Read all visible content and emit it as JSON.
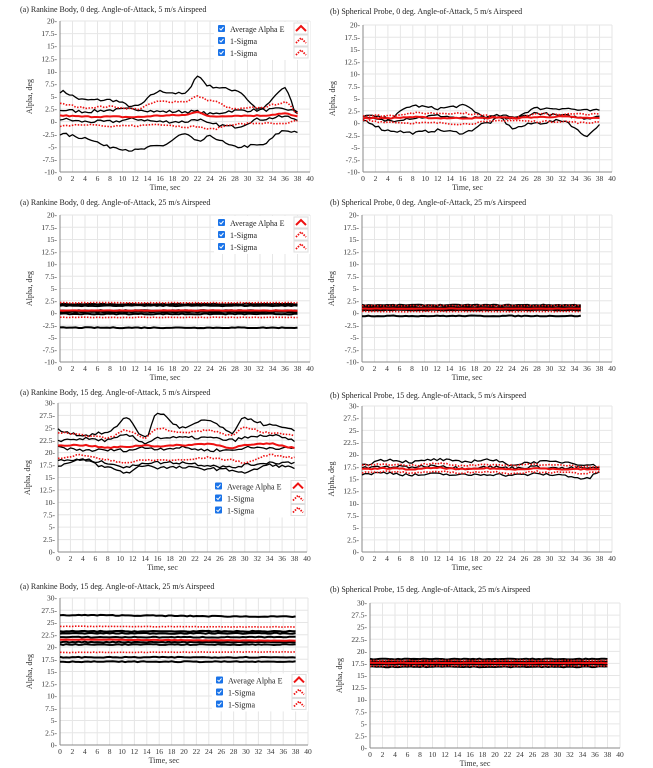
{
  "colors": {
    "run": "#000000",
    "mean": "#ee1111",
    "sigma": "#ee1111",
    "grid": "#e6e6e6",
    "checkbox": "#1a73e8"
  },
  "legend": [
    "Average Alpha E",
    "1-Sigma",
    "1-Sigma"
  ],
  "chart_data": [
    {
      "type": "line",
      "title": "(a) Rankine Body, 0 deg. Angle-of-Attack, 5 m/s Airspeed",
      "xlabel": "Time, sec",
      "ylabel": "Alpha, deg",
      "xlim": [
        0,
        40
      ],
      "xstep": 2,
      "ylim": [
        -10,
        20
      ],
      "ystep": 2.5,
      "grid": true,
      "legend": "top-right",
      "t": [
        0,
        4,
        8,
        12,
        16,
        20,
        22,
        24,
        28,
        32,
        36,
        38
      ],
      "mean": [
        1.2,
        1.0,
        1.0,
        0.9,
        1.2,
        1.3,
        2.0,
        1.0,
        1.2,
        1.2,
        1.6,
        1.0
      ],
      "sigma_upper": [
        3.5,
        2.8,
        3.0,
        2.5,
        4.0,
        4.0,
        5.0,
        4.2,
        2.5,
        2.8,
        3.8,
        1.8
      ],
      "sigma_lower": [
        -0.8,
        -0.5,
        -1.0,
        -0.8,
        -0.5,
        -1.0,
        -1.0,
        -1.5,
        -0.5,
        -0.3,
        -0.5,
        0.2
      ],
      "runs": [
        [
          6,
          4.3,
          4.3,
          3,
          6,
          5.5,
          9,
          7,
          6.3,
          2.5,
          6.5,
          1.5
        ],
        [
          2.3,
          2,
          2.3,
          2.5,
          2,
          2,
          2,
          1.5,
          2.2,
          2.3,
          2.5,
          2
        ],
        [
          0.5,
          0,
          0,
          0.5,
          0,
          0,
          0.5,
          -0.5,
          -1,
          0.5,
          1,
          0.5
        ],
        [
          -2.5,
          -3.2,
          -5,
          -5.7,
          -4.8,
          -2.5,
          -4,
          -3,
          -5,
          -4.7,
          -1.8,
          -2
        ]
      ]
    },
    {
      "type": "line",
      "title": "(b) Spherical Probe, 0 deg. Angle-of-Attack, 5 m/s Airspeed",
      "xlabel": "Time, sec",
      "ylabel": "Alpha, deg",
      "xlim": [
        0,
        40
      ],
      "xstep": 2,
      "ylim": [
        -10,
        20
      ],
      "ystep": 2.5,
      "grid": true,
      "legend": "none",
      "t": [
        0,
        4,
        8,
        12,
        16,
        20,
        22,
        24,
        28,
        32,
        36,
        38
      ],
      "mean": [
        1,
        1,
        1.2,
        1,
        1,
        1,
        1.2,
        1,
        1.2,
        1.3,
        1,
        1
      ],
      "sigma_upper": [
        1.5,
        1.5,
        2,
        2,
        2,
        1.5,
        1.3,
        1,
        1.8,
        1.8,
        1.8,
        1.8
      ],
      "sigma_lower": [
        0.5,
        0.2,
        0,
        0,
        -0.2,
        0.2,
        0.5,
        0.5,
        0.3,
        0.3,
        0,
        0.3
      ],
      "runs": [
        [
          1.5,
          1,
          3.5,
          3,
          3.5,
          1.2,
          1.5,
          1.2,
          3,
          3,
          2.5,
          2.5
        ],
        [
          0.5,
          -1.5,
          -2,
          -1.5,
          -2,
          0,
          1,
          -1,
          0,
          0.5,
          -2.5,
          -0.5
        ],
        [
          1,
          0.5,
          1,
          1.5,
          1,
          1,
          1,
          1,
          2,
          1.5,
          1,
          1.5
        ]
      ]
    },
    {
      "type": "line",
      "title": "(a) Rankine Body, 0 deg. Angle-of-Attack, 25 m/s Airspeed",
      "xlabel": "Time, sec",
      "ylabel": "Alpha, deg",
      "xlim": [
        0,
        40
      ],
      "xstep": 2,
      "ylim": [
        -10,
        20
      ],
      "ystep": 2.5,
      "grid": true,
      "legend": "top-right",
      "t": [
        0,
        38
      ],
      "mean": [
        0.5,
        0.5
      ],
      "sigma_upper": [
        2.1,
        2.1
      ],
      "sigma_lower": [
        -0.9,
        -0.9
      ],
      "runs": [
        [
          1.8,
          1.8
        ],
        [
          1.5,
          1.5
        ],
        [
          0.5,
          0.5
        ],
        [
          0.2,
          0.2
        ],
        [
          -0.2,
          -0.2
        ],
        [
          -3,
          -3
        ]
      ]
    },
    {
      "type": "line",
      "title": "(b) Spherical Probe, 0 deg. Angle-of-Attack, 25 m/s Airspeed",
      "xlabel": "Time, sec",
      "ylabel": "Alpha, deg",
      "xlim": [
        0,
        40
      ],
      "xstep": 2,
      "ylim": [
        -10,
        20
      ],
      "ystep": 2.5,
      "grid": true,
      "legend": "none",
      "t": [
        0,
        35
      ],
      "mean": [
        0.9,
        0.9
      ],
      "sigma_upper": [
        1.5,
        1.5
      ],
      "sigma_lower": [
        0.3,
        0.3
      ],
      "runs": [
        [
          1.6,
          1.6
        ],
        [
          1.2,
          1.2
        ],
        [
          0.9,
          0.9
        ],
        [
          0.6,
          0.6
        ],
        [
          -0.6,
          -0.6
        ]
      ]
    },
    {
      "type": "line",
      "title": "(a) Rankine Body, 15 deg. Angle-of-Attack, 5 m/s Airspeed",
      "xlabel": "Time, sec",
      "ylabel": "Alpha, deg",
      "xlim": [
        0,
        40
      ],
      "xstep": 2,
      "ylim": [
        0,
        30
      ],
      "ystep": 2.5,
      "grid": true,
      "legend": "center-right",
      "t": [
        0,
        4,
        8,
        11,
        14,
        16,
        20,
        24,
        28,
        30,
        34,
        38
      ],
      "mean": [
        21.5,
        21.5,
        21,
        21.2,
        21.5,
        21.3,
        21.5,
        21.8,
        21,
        21.5,
        21.8,
        21
      ],
      "sigma_upper": [
        24,
        23.5,
        23,
        24.5,
        23,
        25,
        24,
        24.5,
        23.5,
        25,
        24,
        23.5
      ],
      "sigma_lower": [
        19,
        19.5,
        18.5,
        18,
        18.5,
        18.5,
        18.5,
        19,
        18.5,
        18,
        19.5,
        19
      ],
      "runs": [
        [
          24.5,
          23.5,
          24,
          27,
          23,
          28,
          25,
          26.5,
          24,
          27,
          25.5,
          24.5
        ],
        [
          22.5,
          22.8,
          22.5,
          23.5,
          22,
          23,
          23,
          23,
          22.5,
          23,
          23.5,
          22.5
        ],
        [
          21,
          20.5,
          20.5,
          20.5,
          21,
          20.8,
          21,
          20.5,
          20.5,
          21,
          21,
          20.8
        ],
        [
          18.5,
          18.5,
          18,
          17,
          18,
          18,
          18,
          17.5,
          17,
          17.5,
          18,
          18
        ],
        [
          17.5,
          18.5,
          17,
          16,
          17.5,
          17,
          17,
          16.8,
          16.5,
          16,
          17.5,
          17
        ]
      ]
    },
    {
      "type": "line",
      "title": "(b) Spherical Probe, 15 deg. Angle-of-Attack, 5 m/s Airspeed",
      "xlabel": "Time, sec",
      "ylabel": "Alpha, deg",
      "xlim": [
        0,
        40
      ],
      "xstep": 2,
      "ylim": [
        0,
        30
      ],
      "ystep": 2.5,
      "grid": true,
      "legend": "none",
      "t": [
        0,
        4,
        8,
        12,
        16,
        20,
        24,
        28,
        32,
        36,
        38
      ],
      "mean": [
        17,
        17.2,
        17,
        17.3,
        17,
        17.2,
        17,
        17.2,
        17,
        17,
        17
      ],
      "sigma_upper": [
        17.8,
        18,
        17.8,
        18.2,
        17.8,
        18,
        17.8,
        18,
        17.8,
        17.6,
        17.5
      ],
      "sigma_lower": [
        16.3,
        16.5,
        16.3,
        16.5,
        16.3,
        16.5,
        16.2,
        16.5,
        16.3,
        16.2,
        16.5
      ],
      "runs": [
        [
          18,
          19,
          18.5,
          19,
          18.5,
          19,
          18,
          18.5,
          18.5,
          18,
          17.5
        ],
        [
          16,
          16.3,
          15.8,
          16,
          15.8,
          16,
          15.8,
          16,
          15.8,
          15,
          16.5
        ],
        [
          17.3,
          17.5,
          17.5,
          17.8,
          17.2,
          17.5,
          17.3,
          17.5,
          17.2,
          17.3,
          17
        ]
      ]
    },
    {
      "type": "line",
      "title": "(a) Rankine Body, 15 deg. Angle-of-Attack, 25 m/s Airspeed",
      "xlabel": "Time, sec",
      "ylabel": "Alpha, deg",
      "xlim": [
        0,
        40
      ],
      "xstep": 2,
      "ylim": [
        0,
        30
      ],
      "ystep": 2.5,
      "grid": true,
      "legend": "center-right",
      "t": [
        0,
        38
      ],
      "mean": [
        21.5,
        21.3
      ],
      "sigma_upper": [
        24.2,
        24.1
      ],
      "sigma_lower": [
        18.9,
        19.0
      ],
      "runs": [
        [
          26.5,
          26.2
        ],
        [
          23.2,
          23.2
        ],
        [
          22.8,
          22.8
        ],
        [
          22,
          22
        ],
        [
          21,
          21
        ],
        [
          20.5,
          20.5
        ],
        [
          17.9,
          17.9
        ],
        [
          17,
          17
        ]
      ]
    },
    {
      "type": "line",
      "title": "(b) Spherical Probe, 15 deg. Angle-of-Attack, 25 m/s Airspeed",
      "xlabel": "Time, sec",
      "ylabel": "Alpha, deg",
      "xlim": [
        0,
        40
      ],
      "xstep": 2,
      "ylim": [
        0,
        30
      ],
      "ystep": 2.5,
      "grid": true,
      "legend": "none",
      "t": [
        0,
        38
      ],
      "mean": [
        17.6,
        17.6
      ],
      "sigma_upper": [
        18.1,
        18.1
      ],
      "sigma_lower": [
        17.0,
        17.0
      ],
      "runs": [
        [
          18.4,
          18.4
        ],
        [
          17.9,
          17.9
        ],
        [
          17.3,
          17.3
        ],
        [
          16.8,
          16.8
        ]
      ]
    }
  ]
}
